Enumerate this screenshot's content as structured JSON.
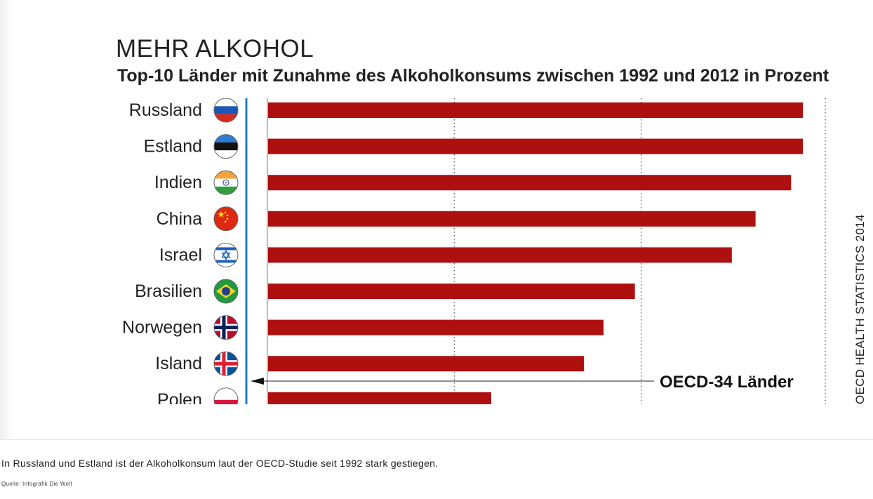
{
  "chart_data": {
    "type": "bar",
    "orientation": "horizontal",
    "title": "MEHR ALKOHOL",
    "subtitle": "Top-10 Länder mit Zunahme des Alkoholkonsums zwischen 1992 und 2012 in Prozent",
    "categories": [
      "Russland",
      "Estland",
      "Indien",
      "China",
      "Israel",
      "Brasilien",
      "Norwegen",
      "Island",
      "Polen"
    ],
    "flags": [
      "russia-flag-icon",
      "estonia-flag-icon",
      "india-flag-icon",
      "china-flag-icon",
      "israel-flag-icon",
      "brazil-flag-icon",
      "norway-flag-icon",
      "iceland-flag-icon",
      "poland-flag-icon"
    ],
    "values": [
      76.8,
      76.8,
      75.1,
      70.0,
      66.6,
      52.7,
      48.2,
      45.4,
      32.1
    ],
    "xlim": [
      0,
      80
    ],
    "gridlines": [
      26.8,
      53.6,
      80
    ],
    "bar_color": "#ae1010",
    "reference": {
      "label": "OECD-34 Länder",
      "value": 0
    }
  },
  "source_label": "OECD HEALTH STATISTICS 2014",
  "caption": "In Russland und Estland ist der Alkoholkonsum laut der OECD-Studie seit 1992 stark gestiegen.",
  "credit": "Quelle: Infografik Die Welt"
}
